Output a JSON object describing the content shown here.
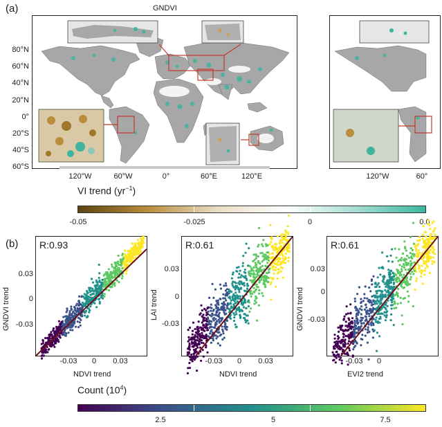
{
  "panel_a": {
    "label": "(a)",
    "map_title": "GNDVI",
    "lat_labels": [
      "80°N",
      "60°N",
      "40°N",
      "20°N",
      "0°",
      "20°S",
      "40°S",
      "60°S"
    ],
    "lon_labels": [
      "120°W",
      "60°W",
      "0°",
      "60°E",
      "120°E"
    ],
    "lon_labels_second": [
      "120°W",
      "60°"
    ],
    "colorbar": {
      "title": "VI trend (yr",
      "title_sup": "−1",
      "title_end": ")",
      "ticks": [
        "-0.05",
        "-0.025",
        "0",
        "0.0"
      ],
      "colors": [
        "#5c4410",
        "#b98e3c",
        "#e9ddc4",
        "#ffffff",
        "#a6ddd2",
        "#3cb7a0"
      ]
    }
  },
  "panel_b": {
    "label": "(b)",
    "scatters": [
      {
        "r_label": "R:0.93",
        "ylabel": "GNDVI trend",
        "xlabel": "NDVI trend",
        "yticks": [
          "0.03",
          "0",
          "-0.03"
        ],
        "xticks": [
          "-0.03",
          "0",
          "0.03"
        ]
      },
      {
        "r_label": "R:0.61",
        "ylabel": "LAI trend",
        "xlabel": "NDVI trend",
        "yticks": [
          "0.03",
          "0",
          "-0.03"
        ],
        "xticks": [
          "-0.03",
          "0",
          "0.03"
        ]
      },
      {
        "r_label": "R:0.61",
        "ylabel": "GNDVI trend",
        "xlabel": "EVI2 trend",
        "yticks": [
          "0.03",
          "0",
          "-0.03"
        ],
        "xticks": [
          "-0.03",
          "0"
        ]
      }
    ],
    "colorbar": {
      "title": "Count (10",
      "title_sup": "4",
      "title_end": ")",
      "ticks": [
        "2.5",
        "5",
        "7.5"
      ],
      "colors": [
        "#440154",
        "#3b528b",
        "#21918c",
        "#5ec962",
        "#fde725"
      ]
    }
  }
}
